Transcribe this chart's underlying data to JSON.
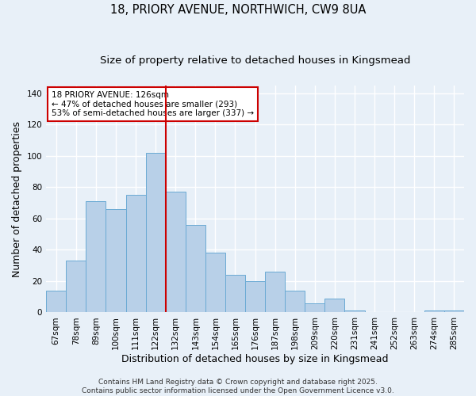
{
  "title_line1": "18, PRIORY AVENUE, NORTHWICH, CW9 8UA",
  "title_line2": "Size of property relative to detached houses in Kingsmead",
  "xlabel": "Distribution of detached houses by size in Kingsmead",
  "ylabel": "Number of detached properties",
  "categories": [
    "67sqm",
    "78sqm",
    "89sqm",
    "100sqm",
    "111sqm",
    "122sqm",
    "132sqm",
    "143sqm",
    "154sqm",
    "165sqm",
    "176sqm",
    "187sqm",
    "198sqm",
    "209sqm",
    "220sqm",
    "231sqm",
    "241sqm",
    "252sqm",
    "263sqm",
    "274sqm",
    "285sqm"
  ],
  "values": [
    14,
    33,
    71,
    66,
    75,
    102,
    77,
    56,
    38,
    24,
    20,
    26,
    14,
    6,
    9,
    1,
    0,
    0,
    0,
    1,
    1
  ],
  "bar_color": "#b8d0e8",
  "bar_edge_color": "#6aaad4",
  "vline_x_idx": 5.5,
  "vline_color": "#cc0000",
  "ylim": [
    0,
    145
  ],
  "yticks": [
    0,
    20,
    40,
    60,
    80,
    100,
    120,
    140
  ],
  "annotation_text": "18 PRIORY AVENUE: 126sqm\n← 47% of detached houses are smaller (293)\n53% of semi-detached houses are larger (337) →",
  "annotation_box_color": "#ffffff",
  "annotation_box_edge": "#cc0000",
  "footer_text": "Contains HM Land Registry data © Crown copyright and database right 2025.\nContains public sector information licensed under the Open Government Licence v3.0.",
  "bg_color": "#e8f0f8",
  "grid_color": "#ffffff",
  "title_fontsize": 10.5,
  "subtitle_fontsize": 9.5,
  "tick_fontsize": 7.5,
  "label_fontsize": 9,
  "annotation_fontsize": 7.5,
  "footer_fontsize": 6.5
}
